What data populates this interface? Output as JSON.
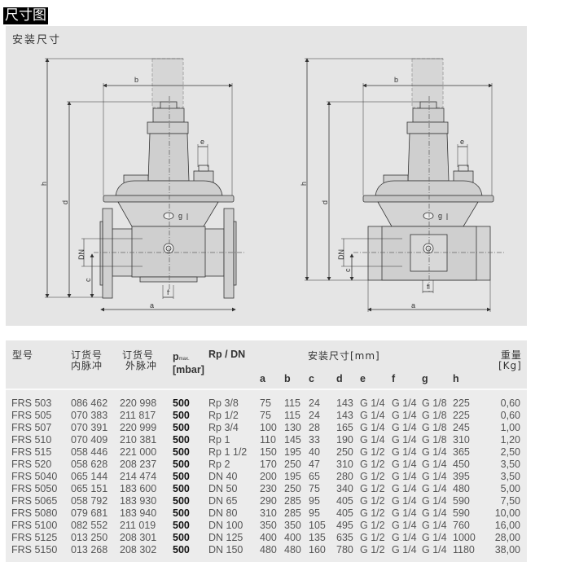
{
  "header": {
    "title": "尺寸图"
  },
  "drawing": {
    "title": "安装尺寸",
    "labels": {
      "a": "a",
      "b": "b",
      "c": "c",
      "d": "d",
      "e": "e",
      "f": "f",
      "g": "g",
      "h": "h",
      "dn": "DN"
    }
  },
  "table": {
    "headers": {
      "model": "型号",
      "order_int_1": "订货号",
      "order_int_2": "内脉冲",
      "order_ext_1": "订货号",
      "order_ext_2": "外脉冲",
      "pmax_p": "p",
      "pmax_sub": "max.",
      "pmax_unit": "[mbar]",
      "rpdn": "Rp / DN",
      "dims_group": "安装尺寸[mm]",
      "weight_1": "重量",
      "weight_2": "[Kg]",
      "dims": [
        "a",
        "b",
        "c",
        "d",
        "e",
        "f",
        "g",
        "h"
      ]
    },
    "rows": [
      {
        "model": "FRS 503",
        "int": "086 462",
        "ext": "220 998",
        "pmax": "500",
        "rpdn": "Rp 3/8",
        "a": "75",
        "b": "115",
        "c": "24",
        "d": "143",
        "e": "G 1/4",
        "f": "G 1/4",
        "g": "G 1/8",
        "h": "225",
        "w": "0,60"
      },
      {
        "model": "FRS 505",
        "int": "070 383",
        "ext": "211 817",
        "pmax": "500",
        "rpdn": "Rp 1/2",
        "a": "75",
        "b": "115",
        "c": "24",
        "d": "143",
        "e": "G 1/4",
        "f": "G 1/4",
        "g": "G 1/8",
        "h": "225",
        "w": "0,60"
      },
      {
        "model": "FRS 507",
        "int": "070 391",
        "ext": "220 999",
        "pmax": "500",
        "rpdn": "Rp 3/4",
        "a": "100",
        "b": "130",
        "c": "28",
        "d": "165",
        "e": "G 1/4",
        "f": "G 1/4",
        "g": "G 1/8",
        "h": "245",
        "w": "1,00"
      },
      {
        "model": "FRS 510",
        "int": "070 409",
        "ext": "210 381",
        "pmax": "500",
        "rpdn": "Rp 1",
        "a": "110",
        "b": "145",
        "c": "33",
        "d": "190",
        "e": "G 1/4",
        "f": "G 1/4",
        "g": "G 1/8",
        "h": "310",
        "w": "1,20"
      },
      {
        "model": "FRS 515",
        "int": "058 446",
        "ext": "221 000",
        "pmax": "500",
        "rpdn": "Rp 1 1/2",
        "a": "150",
        "b": "195",
        "c": "40",
        "d": "250",
        "e": "G 1/2",
        "f": "G 1/4",
        "g": "G 1/4",
        "h": "365",
        "w": "2,50"
      },
      {
        "model": "FRS 520",
        "int": "058 628",
        "ext": "208 237",
        "pmax": "500",
        "rpdn": "Rp 2",
        "a": "170",
        "b": "250",
        "c": "47",
        "d": "310",
        "e": "G 1/2",
        "f": "G 1/4",
        "g": "G 1/4",
        "h": "450",
        "w": "3,50"
      },
      {
        "model": "FRS 5040",
        "int": "065 144",
        "ext": "214 474",
        "pmax": "500",
        "rpdn": "DN 40",
        "a": "200",
        "b": "195",
        "c": "65",
        "d": "280",
        "e": "G 1/2",
        "f": "G 1/4",
        "g": "G 1/4",
        "h": "395",
        "w": "3,50"
      },
      {
        "model": "FRS 5050",
        "int": "065 151",
        "ext": "183 600",
        "pmax": "500",
        "rpdn": "DN 50",
        "a": "230",
        "b": "250",
        "c": "75",
        "d": "340",
        "e": "G 1/2",
        "f": "G 1/4",
        "g": "G 1/4",
        "h": "480",
        "w": "5,00"
      },
      {
        "model": "FRS 5065",
        "int": "058 792",
        "ext": "183 930",
        "pmax": "500",
        "rpdn": "DN 65",
        "a": "290",
        "b": "285",
        "c": "95",
        "d": "405",
        "e": "G 1/2",
        "f": "G 1/4",
        "g": "G 1/4",
        "h": "590",
        "w": "7,50"
      },
      {
        "model": "FRS 5080",
        "int": "079 681",
        "ext": "183 940",
        "pmax": "500",
        "rpdn": "DN 80",
        "a": "310",
        "b": "285",
        "c": "95",
        "d": "405",
        "e": "G 1/2",
        "f": "G 1/4",
        "g": "G 1/4",
        "h": "590",
        "w": "10,00"
      },
      {
        "model": "FRS 5100",
        "int": "082 552",
        "ext": "211 019",
        "pmax": "500",
        "rpdn": "DN 100",
        "a": "350",
        "b": "350",
        "c": "105",
        "d": "495",
        "e": "G 1/2",
        "f": "G 1/4",
        "g": "G 1/4",
        "h": "760",
        "w": "16,00"
      },
      {
        "model": "FRS 5125",
        "int": "013 250",
        "ext": "208 301",
        "pmax": "500",
        "rpdn": "DN 125",
        "a": "400",
        "b": "400",
        "c": "135",
        "d": "635",
        "e": "G 1/2",
        "f": "G 1/4",
        "g": "G 1/4",
        "h": "1000",
        "w": "28,00"
      },
      {
        "model": "FRS 5150",
        "int": "013 268",
        "ext": "208 302",
        "pmax": "500",
        "rpdn": "DN 150",
        "a": "480",
        "b": "480",
        "c": "160",
        "d": "780",
        "e": "G 1/2",
        "f": "G 1/4",
        "g": "G 1/4",
        "h": "1180",
        "w": "38,00"
      }
    ]
  }
}
